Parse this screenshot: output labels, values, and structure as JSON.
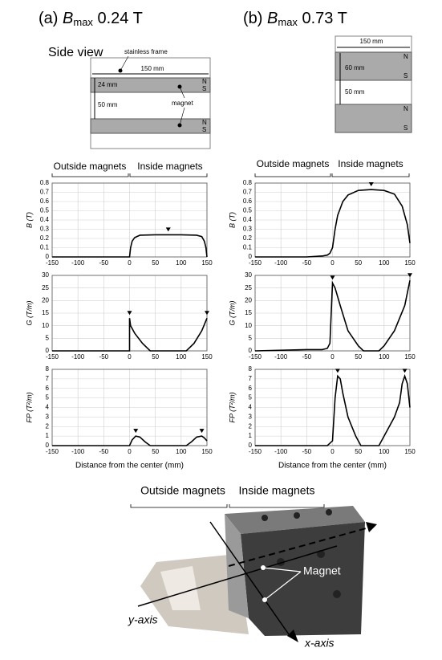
{
  "panels": [
    {
      "label": "(a)",
      "symbol": "B",
      "subscript": "max",
      "field": "0.24 T"
    },
    {
      "label": "(b)",
      "symbol": "B",
      "subscript": "max",
      "field": "0.73 T"
    }
  ],
  "side_view": "Side view",
  "diagram_a": {
    "frame_label": "stainless frame",
    "width": "150 mm",
    "magnet_height": "24 mm",
    "gap": "50 mm",
    "magnet_label": "magnet",
    "poles": [
      "N",
      "S",
      "N",
      "S"
    ]
  },
  "diagram_b": {
    "width": "150 mm",
    "magnet_height": "60 mm",
    "gap": "50 mm",
    "poles": [
      "N",
      "S",
      "N",
      "S"
    ]
  },
  "regions": {
    "outside": "Outside magnets",
    "inside": "Inside magnets"
  },
  "photo": {
    "outside": "Outside magnets",
    "inside": "Inside magnets",
    "magnet": "Magnet",
    "y_axis": "y-axis",
    "x_axis": "x-axis"
  },
  "chart_data": [
    {
      "type": "line",
      "y_label": "B (T)",
      "xlim": [
        -150,
        150
      ],
      "ylim": [
        0,
        0.8
      ],
      "xticks": [
        -150,
        -100,
        -50,
        0,
        50,
        100,
        150
      ],
      "yticks": [
        0,
        0.1,
        0.2,
        0.3,
        0.4,
        0.5,
        0.6,
        0.7,
        0.8
      ],
      "grid": true,
      "x": [
        -150,
        -100,
        -50,
        0,
        2,
        5,
        10,
        20,
        50,
        100,
        130,
        140,
        145,
        148,
        150
      ],
      "series": [
        {
          "color": "#000000",
          "values": [
            0,
            0,
            0,
            0,
            0.1,
            0.17,
            0.21,
            0.235,
            0.24,
            0.24,
            0.235,
            0.22,
            0.17,
            0.1,
            0
          ]
        }
      ],
      "peaks": {
        "x": [
          75
        ],
        "values": [
          0.24
        ]
      }
    },
    {
      "type": "line",
      "y_label": "G (T/m)",
      "xlim": [
        -150,
        150
      ],
      "ylim": [
        0,
        30
      ],
      "xticks": [
        -150,
        -100,
        -50,
        0,
        50,
        100,
        150
      ],
      "yticks": [
        0,
        5,
        10,
        15,
        20,
        25,
        30
      ],
      "grid": true,
      "x": [
        -150,
        0,
        0,
        2,
        10,
        25,
        40,
        110,
        125,
        140,
        148,
        150
      ],
      "series": [
        {
          "color": "#000000",
          "values": [
            0,
            0,
            13,
            10,
            7,
            3,
            0,
            0,
            3,
            8,
            12,
            13
          ]
        }
      ],
      "peaks": {
        "x": [
          0,
          150
        ],
        "values": [
          13,
          13
        ]
      }
    },
    {
      "type": "line",
      "y_label": "FP (T²/m)",
      "x_label": "Distance from the center (mm)",
      "xlim": [
        -150,
        150
      ],
      "ylim": [
        0,
        8
      ],
      "xticks": [
        -150,
        -100,
        -50,
        0,
        50,
        100,
        150
      ],
      "yticks": [
        0,
        1,
        2,
        3,
        4,
        5,
        6,
        7,
        8
      ],
      "grid": true,
      "x": [
        -150,
        0,
        5,
        12,
        20,
        30,
        40,
        110,
        120,
        130,
        140,
        145,
        150
      ],
      "series": [
        {
          "color": "#000000",
          "values": [
            0,
            0,
            0.6,
            1.0,
            0.9,
            0.4,
            0,
            0,
            0.4,
            0.9,
            1.0,
            0.8,
            0.5
          ]
        }
      ],
      "peaks": {
        "x": [
          12,
          140
        ],
        "values": [
          1.0,
          1.0
        ]
      }
    },
    {
      "type": "line",
      "y_label": "B (T)",
      "xlim": [
        -150,
        150
      ],
      "ylim": [
        0,
        0.8
      ],
      "xticks": [
        -150,
        -100,
        -50,
        0,
        50,
        100,
        150
      ],
      "yticks": [
        0,
        0.1,
        0.2,
        0.3,
        0.4,
        0.5,
        0.6,
        0.7,
        0.8
      ],
      "grid": true,
      "x": [
        -150,
        -50,
        -20,
        -10,
        -5,
        0,
        5,
        10,
        20,
        30,
        50,
        75,
        100,
        120,
        135,
        145,
        150
      ],
      "series": [
        {
          "color": "#000000",
          "values": [
            0,
            0,
            0.01,
            0.02,
            0.04,
            0.1,
            0.3,
            0.45,
            0.6,
            0.67,
            0.72,
            0.73,
            0.72,
            0.68,
            0.55,
            0.35,
            0.15
          ]
        }
      ],
      "peaks": {
        "x": [
          75
        ],
        "values": [
          0.73
        ]
      }
    },
    {
      "type": "line",
      "y_label": "G (T/m)",
      "xlim": [
        -150,
        150
      ],
      "ylim": [
        0,
        30
      ],
      "xticks": [
        -150,
        -100,
        -50,
        0,
        50,
        100,
        150
      ],
      "yticks": [
        0,
        5,
        10,
        15,
        20,
        25,
        30
      ],
      "grid": true,
      "x": [
        -150,
        -50,
        -20,
        -10,
        -5,
        0,
        5,
        15,
        30,
        50,
        60,
        90,
        100,
        120,
        140,
        150
      ],
      "series": [
        {
          "color": "#000000",
          "values": [
            0,
            0.5,
            0.5,
            1,
            3,
            27,
            25,
            18,
            8,
            2,
            0,
            0,
            2,
            8,
            18,
            28
          ]
        }
      ],
      "peaks": {
        "x": [
          0,
          150
        ],
        "values": [
          27,
          28
        ]
      }
    },
    {
      "type": "line",
      "y_label": "FP (T²/m)",
      "x_label": "Distance from the center (mm)",
      "xlim": [
        -150,
        150
      ],
      "ylim": [
        0,
        8
      ],
      "xticks": [
        -150,
        -100,
        -50,
        0,
        50,
        100,
        150
      ],
      "yticks": [
        0,
        1,
        2,
        3,
        4,
        5,
        6,
        7,
        8
      ],
      "grid": true,
      "x": [
        -150,
        -50,
        -10,
        0,
        5,
        10,
        15,
        20,
        30,
        45,
        55,
        90,
        100,
        110,
        120,
        130,
        135,
        140,
        145,
        150
      ],
      "series": [
        {
          "color": "#000000",
          "values": [
            0,
            0,
            0,
            0.5,
            5,
            7.3,
            7,
            5.5,
            3,
            1,
            0,
            0,
            1,
            2,
            3,
            4.5,
            6.5,
            7.3,
            6.5,
            4
          ]
        }
      ],
      "peaks": {
        "x": [
          10,
          140
        ],
        "values": [
          7.3,
          7.3
        ]
      }
    }
  ]
}
